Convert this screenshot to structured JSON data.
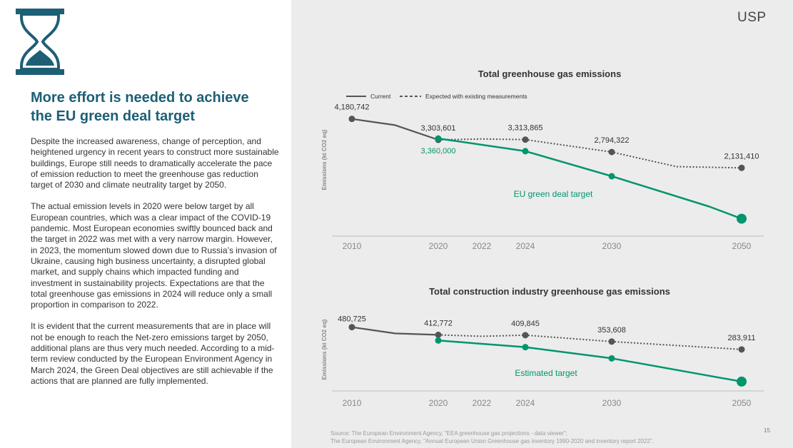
{
  "colors": {
    "accent": "#1d5f75",
    "current": "#555555",
    "target": "#00956e"
  },
  "header": {
    "title": "More effort is needed to achieve the EU green deal target",
    "logo_text": "USP"
  },
  "paragraphs": [
    "Despite the increased awareness, change of perception, and heightened urgency in recent years to construct more sustainable buildings, Europe still needs to dramatically accelerate the pace of emission reduction to meet the greenhouse gas reduction target of 2030 and climate neutrality target by 2050.",
    "The actual emission levels in 2020 were below target by all European countries, which was a clear impact of the COVID-19 pandemic. Most European economies swiftly bounced back and the target in 2022 was met with a very narrow margin. However, in 2023, the momentum slowed down due to Russia’s invasion of Ukraine, causing high business uncertainty, a disrupted global market, and supply chains which impacted funding and investment in sustainability projects. Expectations are that the total greenhouse gas emissions in 2024 will reduce only a small proportion in comparison to 2022.",
    "It is evident that the current measurements that are in place will not be enough to reach the Net-zero emissions target by 2050, additional plans are thus very much needed. According to a mid-term review conducted by the European Environment Agency in March 2024, the Green Deal objectives are still achievable if the actions that are planned are fully implemented."
  ],
  "legend": {
    "current": "Current",
    "expected": "Expected with existing measurements"
  },
  "chart_data": [
    {
      "type": "line",
      "title": "Total greenhouse gas emissions",
      "ylabel": "Emissions (kt CO2 eq)",
      "x_ticks": [
        2010,
        2020,
        2022,
        2024,
        2030,
        2050
      ],
      "series": [
        {
          "name": "Current",
          "x": [
            2010,
            2015,
            2020
          ],
          "values": [
            4180742,
            3920000,
            3303601
          ]
        },
        {
          "name": "Expected with existing measurements",
          "x": [
            2020,
            2022,
            2024,
            2030,
            2040,
            2050
          ],
          "values": [
            3303601,
            3340000,
            3313865,
            2794322,
            2180000,
            2131410
          ]
        },
        {
          "name": "EU green deal target",
          "x": [
            2020,
            2024,
            2030,
            2045,
            2050
          ],
          "values": [
            3360000,
            2830000,
            1780000,
            510000,
            0
          ]
        }
      ],
      "labels": [
        {
          "x": 2010,
          "value": 4180742,
          "text": "4,180,742",
          "series": "Current"
        },
        {
          "x": 2020,
          "value": 3303601,
          "text": "3,303,601",
          "series": "Current"
        },
        {
          "x": 2020,
          "value": 3360000,
          "text": "3,360,000",
          "series": "EU green deal target"
        },
        {
          "x": 2024,
          "value": 3313865,
          "text": "3,313,865",
          "series": "Expected with existing measurements"
        },
        {
          "x": 2030,
          "value": 2794322,
          "text": "2,794,322",
          "series": "Expected with existing measurements"
        },
        {
          "x": 2050,
          "value": 2131410,
          "text": "2,131,410",
          "series": "Expected with existing measurements"
        }
      ],
      "series_label": "EU green deal target",
      "ylim": [
        -700000,
        4500000
      ]
    },
    {
      "type": "line",
      "title": "Total construction industry greenhouse gas emissions",
      "ylabel": "Emissions (kt CO2 eq)",
      "x_ticks": [
        2010,
        2020,
        2022,
        2024,
        2030,
        2050
      ],
      "series": [
        {
          "name": "Current",
          "x": [
            2010,
            2015,
            2020
          ],
          "values": [
            480725,
            425000,
            412772
          ]
        },
        {
          "name": "Expected with existing measurements",
          "x": [
            2020,
            2022,
            2024,
            2030,
            2050
          ],
          "values": [
            412772,
            400000,
            409845,
            353608,
            283911
          ]
        },
        {
          "name": "Estimated target",
          "x": [
            2020,
            2024,
            2030,
            2050
          ],
          "values": [
            363000,
            304000,
            205000,
            0
          ]
        }
      ],
      "labels": [
        {
          "x": 2010,
          "value": 480725,
          "text": "480,725",
          "series": "Current"
        },
        {
          "x": 2020,
          "value": 412772,
          "text": "412,772",
          "series": "Current"
        },
        {
          "x": 2024,
          "value": 409845,
          "text": "409,845",
          "series": "Expected with existing measurements"
        },
        {
          "x": 2030,
          "value": 353608,
          "text": "353,608",
          "series": "Expected with existing measurements"
        },
        {
          "x": 2050,
          "value": 283911,
          "text": "283,911",
          "series": "Expected with existing measurements"
        }
      ],
      "series_label": "Estimated target",
      "ylim": [
        -70000,
        560000
      ]
    }
  ],
  "footer": {
    "source_line1": "Source: The European Environment Agency, \"EEA greenhouse gas projections - data viewer\";",
    "source_line2": "The European Environment Agency, \"Annual European Union Greenhouse gas inventory 1990-2020 and inventory report 2022\".",
    "page_number": "15"
  }
}
